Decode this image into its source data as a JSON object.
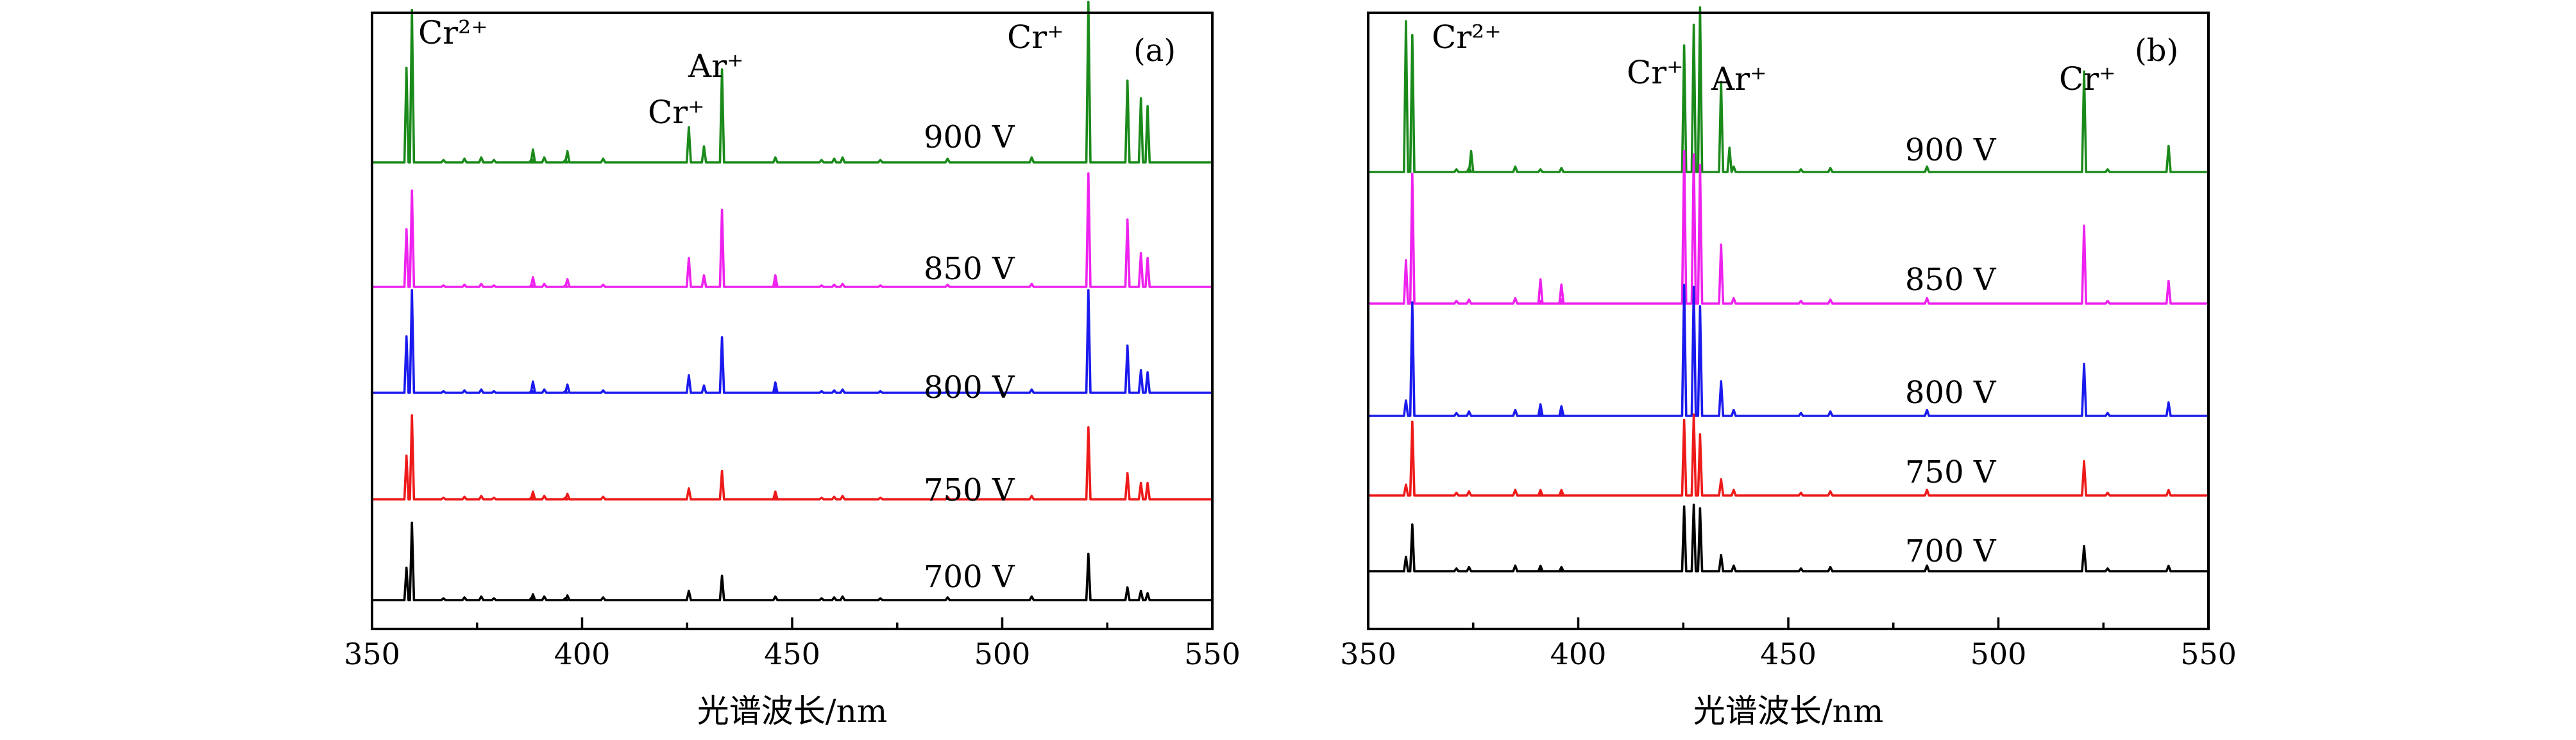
{
  "chart_data": [
    {
      "type": "line",
      "panel_tag": "(a)",
      "xlabel": "光谱波长/nm",
      "ylabel": "",
      "xlim": [
        350,
        550
      ],
      "x_ticks": [
        "350",
        "400",
        "450",
        "500",
        "550"
      ],
      "y_ticks_shown": false,
      "stacked_offsets": true,
      "baseline_noise_lines_nm": [
        367,
        372,
        376,
        379,
        388,
        391,
        396,
        405,
        446,
        457,
        460,
        462,
        471,
        487,
        507
      ],
      "series": [
        {
          "name": "900 V",
          "color": "#1a8a1a",
          "offset_level": 4,
          "peaks": [
            {
              "nm": 358.2,
              "h": 0.59
            },
            {
              "nm": 359.5,
              "h": 0.95
            },
            {
              "nm": 388.3,
              "h": 0.08
            },
            {
              "nm": 396.5,
              "h": 0.07
            },
            {
              "nm": 425.4,
              "h": 0.22
            },
            {
              "nm": 429,
              "h": 0.1
            },
            {
              "nm": 433.3,
              "h": 0.58
            },
            {
              "nm": 520.5,
              "h": 1.0
            },
            {
              "nm": 529.8,
              "h": 0.51
            },
            {
              "nm": 533,
              "h": 0.4
            },
            {
              "nm": 534.6,
              "h": 0.35
            }
          ]
        },
        {
          "name": "850 V",
          "color": "#ee22ee",
          "offset_level": 3,
          "peaks": [
            {
              "nm": 358.2,
              "h": 0.6
            },
            {
              "nm": 359.5,
              "h": 1.0
            },
            {
              "nm": 388.3,
              "h": 0.1
            },
            {
              "nm": 396.5,
              "h": 0.08
            },
            {
              "nm": 425.4,
              "h": 0.3
            },
            {
              "nm": 429,
              "h": 0.12
            },
            {
              "nm": 433.3,
              "h": 0.8
            },
            {
              "nm": 446,
              "h": 0.12
            },
            {
              "nm": 520.5,
              "h": 1.18
            },
            {
              "nm": 529.8,
              "h": 0.7
            },
            {
              "nm": 533,
              "h": 0.35
            },
            {
              "nm": 534.6,
              "h": 0.3
            }
          ]
        },
        {
          "name": "800 V",
          "color": "#1a1aee",
          "offset_level": 2,
          "peaks": [
            {
              "nm": 358.2,
              "h": 0.55
            },
            {
              "nm": 359.5,
              "h": 1.0
            },
            {
              "nm": 388.3,
              "h": 0.11
            },
            {
              "nm": 396.5,
              "h": 0.08
            },
            {
              "nm": 425.4,
              "h": 0.17
            },
            {
              "nm": 429,
              "h": 0.07
            },
            {
              "nm": 433.3,
              "h": 0.54
            },
            {
              "nm": 446,
              "h": 0.1
            },
            {
              "nm": 520.5,
              "h": 1.0
            },
            {
              "nm": 529.8,
              "h": 0.46
            },
            {
              "nm": 533,
              "h": 0.22
            },
            {
              "nm": 534.6,
              "h": 0.2
            }
          ]
        },
        {
          "name": "750 V",
          "color": "#ee1a1a",
          "offset_level": 1,
          "peaks": [
            {
              "nm": 358.2,
              "h": 0.4
            },
            {
              "nm": 359.5,
              "h": 0.77
            },
            {
              "nm": 388.3,
              "h": 0.07
            },
            {
              "nm": 396.5,
              "h": 0.05
            },
            {
              "nm": 425.4,
              "h": 0.1
            },
            {
              "nm": 433.3,
              "h": 0.26
            },
            {
              "nm": 446,
              "h": 0.07
            },
            {
              "nm": 520.5,
              "h": 0.66
            },
            {
              "nm": 529.8,
              "h": 0.24
            },
            {
              "nm": 533,
              "h": 0.15
            },
            {
              "nm": 534.6,
              "h": 0.15
            }
          ]
        },
        {
          "name": "700 V",
          "color": "#000000",
          "offset_level": 0,
          "peaks": [
            {
              "nm": 358.2,
              "h": 0.28
            },
            {
              "nm": 359.5,
              "h": 0.67
            },
            {
              "nm": 388.3,
              "h": 0.05
            },
            {
              "nm": 396.5,
              "h": 0.04
            },
            {
              "nm": 425.4,
              "h": 0.08
            },
            {
              "nm": 433.3,
              "h": 0.21
            },
            {
              "nm": 520.5,
              "h": 0.4
            },
            {
              "nm": 529.8,
              "h": 0.11
            },
            {
              "nm": 533,
              "h": 0.08
            },
            {
              "nm": 534.6,
              "h": 0.06
            }
          ]
        }
      ],
      "annotations": [
        {
          "text": "Cr²⁺",
          "nm": 361
        },
        {
          "text": "Ar⁺",
          "nm": 428
        },
        {
          "text": "Cr⁺",
          "nm": 420
        },
        {
          "text": "Cr⁺",
          "nm": 510
        }
      ]
    },
    {
      "type": "line",
      "panel_tag": "(b)",
      "xlabel": "光谱波长/nm",
      "ylabel": "",
      "xlim": [
        350,
        550
      ],
      "x_ticks": [
        "350",
        "400",
        "450",
        "500",
        "550"
      ],
      "y_ticks_shown": false,
      "stacked_offsets": true,
      "baseline_noise_lines_nm": [
        371,
        374,
        385,
        391,
        396,
        437,
        453,
        460,
        483,
        526
      ],
      "series": [
        {
          "name": "900 V",
          "color": "#1a8a1a",
          "offset_level": 4,
          "peaks": [
            {
              "nm": 359,
              "h": 0.87
            },
            {
              "nm": 360.5,
              "h": 0.79
            },
            {
              "nm": 374.5,
              "h": 0.12
            },
            {
              "nm": 425.2,
              "h": 0.73
            },
            {
              "nm": 427.5,
              "h": 0.85
            },
            {
              "nm": 429,
              "h": 0.95
            },
            {
              "nm": 434,
              "h": 0.52
            },
            {
              "nm": 436,
              "h": 0.14
            },
            {
              "nm": 520.4,
              "h": 0.58
            },
            {
              "nm": 540.5,
              "h": 0.15
            }
          ]
        },
        {
          "name": "850 V",
          "color": "#ee22ee",
          "offset_level": 3,
          "peaks": [
            {
              "nm": 359,
              "h": 0.25
            },
            {
              "nm": 360.5,
              "h": 0.75
            },
            {
              "nm": 391,
              "h": 0.14
            },
            {
              "nm": 396,
              "h": 0.11
            },
            {
              "nm": 425.2,
              "h": 0.88
            },
            {
              "nm": 427.5,
              "h": 0.86
            },
            {
              "nm": 429,
              "h": 0.8
            },
            {
              "nm": 434,
              "h": 0.34
            },
            {
              "nm": 520.4,
              "h": 0.45
            },
            {
              "nm": 540.5,
              "h": 0.13
            }
          ]
        },
        {
          "name": "800 V",
          "color": "#1a1aee",
          "offset_level": 2,
          "peaks": [
            {
              "nm": 359,
              "h": 0.08
            },
            {
              "nm": 360.5,
              "h": 0.59
            },
            {
              "nm": 391,
              "h": 0.06
            },
            {
              "nm": 396,
              "h": 0.05
            },
            {
              "nm": 425.2,
              "h": 0.68
            },
            {
              "nm": 427.5,
              "h": 0.67
            },
            {
              "nm": 429,
              "h": 0.57
            },
            {
              "nm": 434,
              "h": 0.18
            },
            {
              "nm": 520.4,
              "h": 0.27
            },
            {
              "nm": 540.5,
              "h": 0.07
            }
          ]
        },
        {
          "name": "750 V",
          "color": "#ee1a1a",
          "offset_level": 1,
          "peaks": [
            {
              "nm": 359,
              "h": 0.06
            },
            {
              "nm": 360.5,
              "h": 0.41
            },
            {
              "nm": 391,
              "h": 0.03
            },
            {
              "nm": 396,
              "h": 0.03
            },
            {
              "nm": 425.2,
              "h": 0.42
            },
            {
              "nm": 427.5,
              "h": 0.45
            },
            {
              "nm": 429,
              "h": 0.34
            },
            {
              "nm": 434,
              "h": 0.09
            },
            {
              "nm": 520.4,
              "h": 0.19
            },
            {
              "nm": 540.5,
              "h": 0.03
            }
          ]
        },
        {
          "name": "700 V",
          "color": "#000000",
          "offset_level": 0,
          "peaks": [
            {
              "nm": 359,
              "h": 0.08
            },
            {
              "nm": 360.5,
              "h": 0.26
            },
            {
              "nm": 391,
              "h": 0.03
            },
            {
              "nm": 396,
              "h": 0.02
            },
            {
              "nm": 425.2,
              "h": 0.36
            },
            {
              "nm": 427.5,
              "h": 0.37
            },
            {
              "nm": 429,
              "h": 0.35
            },
            {
              "nm": 434,
              "h": 0.09
            },
            {
              "nm": 520.4,
              "h": 0.14
            },
            {
              "nm": 540.5,
              "h": 0.03
            }
          ]
        }
      ],
      "annotations": [
        {
          "text": "Cr²⁺",
          "nm": 365
        },
        {
          "text": "Cr⁺",
          "nm": 419.5
        },
        {
          "text": "Ar⁺",
          "nm": 439.5
        },
        {
          "text": "Cr⁺",
          "nm": 520
        }
      ]
    }
  ]
}
